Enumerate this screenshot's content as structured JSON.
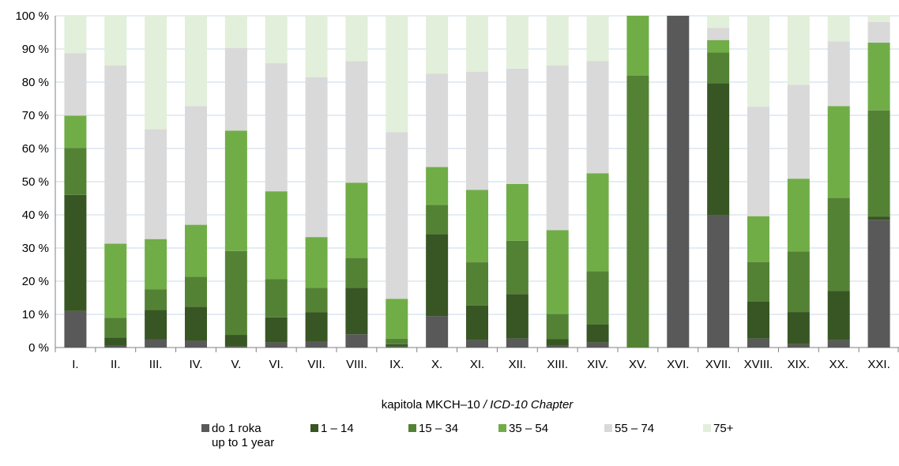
{
  "chart_data": {
    "type": "bar",
    "stacked": true,
    "percent_stacked": true,
    "categories": [
      "I.",
      "II.",
      "III.",
      "IV.",
      "V.",
      "VI.",
      "VII.",
      "VIII.",
      "IX.",
      "X.",
      "XI.",
      "XII.",
      "XIII.",
      "XIV.",
      "XV.",
      "XVI.",
      "XVII.",
      "XVIII.",
      "XIX.",
      "XX.",
      "XXI."
    ],
    "xlabel": "kapitola MKCH–10",
    "xlabel_en": "/ ICD-10 Chapter",
    "ylabel": "",
    "ylim": [
      0,
      100
    ],
    "y_ticks": [
      "0 %",
      "10 %",
      "20 %",
      "30 %",
      "40 %",
      "50 %",
      "60 %",
      "70 %",
      "80 %",
      "90 %",
      "100 %"
    ],
    "grid": true,
    "legend_position": "bottom",
    "series": [
      {
        "name": "do 1 roka",
        "name_en": "up to 1 year",
        "color": "#595959",
        "values": [
          11,
          0.5,
          2.5,
          2,
          0.3,
          1.5,
          1.8,
          4,
          0.3,
          9.5,
          2.2,
          2.7,
          0.5,
          1.5,
          0,
          100,
          41.5,
          2.7,
          1,
          2.2,
          38.5
        ]
      },
      {
        "name": "1 – 14",
        "name_en": "",
        "color": "#375623",
        "values": [
          35,
          2.5,
          8.8,
          10.3,
          3.5,
          7.6,
          8.8,
          14,
          0.7,
          24.7,
          10.5,
          13.4,
          2,
          5.5,
          0,
          0,
          41.4,
          11.2,
          9.7,
          14.9,
          1
        ]
      },
      {
        "name": "15 – 34",
        "name_en": "",
        "color": "#548235",
        "values": [
          14.2,
          6,
          6.2,
          9,
          25.3,
          11.5,
          7.4,
          9,
          1.7,
          8.8,
          13,
          16.1,
          7.6,
          16,
          82,
          0,
          9.6,
          11.9,
          18.3,
          28,
          32
        ]
      },
      {
        "name": "35 – 54",
        "name_en": "",
        "color": "#70AD47",
        "values": [
          9.7,
          22.3,
          15.2,
          15.7,
          36.3,
          26.5,
          15.3,
          22.7,
          12,
          11.4,
          21.8,
          17.1,
          25.3,
          29.5,
          18,
          0,
          3.9,
          13.8,
          21.9,
          27.7,
          20.4
        ]
      },
      {
        "name": "55 – 74",
        "name_en": "",
        "color": "#D9D9D9",
        "values": [
          18.8,
          53.7,
          33.1,
          35.8,
          24.9,
          38.6,
          48.2,
          36.6,
          50.2,
          28.1,
          35.6,
          34.8,
          49.6,
          33.9,
          0,
          0,
          3.8,
          33,
          28.3,
          19.5,
          6.2
        ]
      },
      {
        "name": "75+",
        "name_en": "",
        "color": "#E2EFDA",
        "values": [
          11.3,
          15,
          34.2,
          27.2,
          9.7,
          14.3,
          18.5,
          13.7,
          35.1,
          17.5,
          16.9,
          15.9,
          15,
          13.6,
          0,
          0,
          3.8,
          27.4,
          20.8,
          7.7,
          1.9
        ]
      }
    ]
  }
}
